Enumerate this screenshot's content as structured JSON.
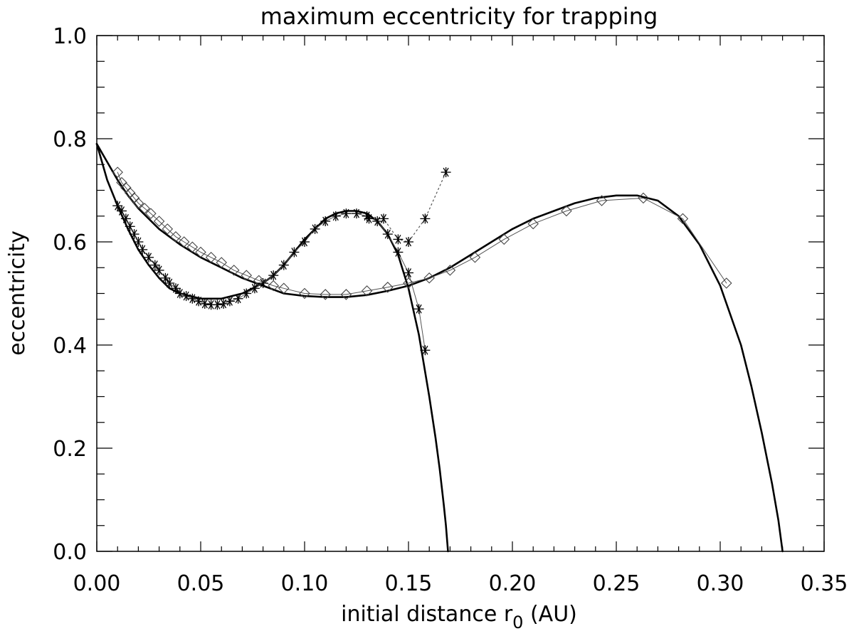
{
  "chart_data": {
    "type": "line",
    "title": "maximum eccentricity for trapping",
    "xlabel": {
      "prefix": "initial distance r",
      "subscript": "0",
      "suffix": " (AU)"
    },
    "ylabel": "eccentricity",
    "xlim": [
      0.0,
      0.35
    ],
    "ylim": [
      0.0,
      1.0
    ],
    "x_ticks": [
      0.0,
      0.05,
      0.1,
      0.15,
      0.2,
      0.25,
      0.3,
      0.35
    ],
    "x_tick_labels": [
      "0.00",
      "0.05",
      "0.10",
      "0.15",
      "0.20",
      "0.25",
      "0.30",
      "0.35"
    ],
    "y_ticks": [
      0.0,
      0.2,
      0.4,
      0.6,
      0.8,
      1.0
    ],
    "y_tick_labels": [
      "0.0",
      "0.2",
      "0.4",
      "0.6",
      "0.8",
      "1.0"
    ],
    "grid": false,
    "series": [
      {
        "name": "asterisk-model-curve",
        "style": "thick-line",
        "x": [
          0.0,
          0.005,
          0.01,
          0.015,
          0.02,
          0.025,
          0.03,
          0.035,
          0.04,
          0.045,
          0.05,
          0.055,
          0.06,
          0.065,
          0.07,
          0.075,
          0.08,
          0.085,
          0.09,
          0.095,
          0.1,
          0.105,
          0.11,
          0.115,
          0.12,
          0.125,
          0.13,
          0.135,
          0.14,
          0.145,
          0.15,
          0.155,
          0.16,
          0.163,
          0.165,
          0.167,
          0.168,
          0.169
        ],
        "y": [
          0.79,
          0.72,
          0.67,
          0.625,
          0.585,
          0.555,
          0.53,
          0.51,
          0.5,
          0.495,
          0.49,
          0.49,
          0.49,
          0.495,
          0.5,
          0.51,
          0.52,
          0.535,
          0.555,
          0.58,
          0.605,
          0.625,
          0.645,
          0.655,
          0.66,
          0.66,
          0.655,
          0.64,
          0.615,
          0.575,
          0.51,
          0.42,
          0.3,
          0.22,
          0.16,
          0.09,
          0.05,
          0.0
        ]
      },
      {
        "name": "asterisk-data",
        "style": "thin-line-asterisk",
        "x": [
          0.01,
          0.012,
          0.014,
          0.016,
          0.018,
          0.02,
          0.022,
          0.025,
          0.028,
          0.03,
          0.033,
          0.035,
          0.038,
          0.04,
          0.043,
          0.046,
          0.049,
          0.052,
          0.055,
          0.058,
          0.061,
          0.064,
          0.068,
          0.072,
          0.076,
          0.08,
          0.085,
          0.09,
          0.095,
          0.1,
          0.105,
          0.11,
          0.115,
          0.12,
          0.125,
          0.13,
          0.135,
          0.14,
          0.145,
          0.15,
          0.155,
          0.158
        ],
        "y": [
          0.67,
          0.66,
          0.645,
          0.63,
          0.615,
          0.6,
          0.585,
          0.57,
          0.555,
          0.545,
          0.53,
          0.52,
          0.51,
          0.5,
          0.495,
          0.49,
          0.485,
          0.48,
          0.478,
          0.478,
          0.48,
          0.485,
          0.49,
          0.5,
          0.51,
          0.52,
          0.535,
          0.555,
          0.58,
          0.6,
          0.625,
          0.64,
          0.65,
          0.655,
          0.655,
          0.65,
          0.64,
          0.615,
          0.58,
          0.54,
          0.47,
          0.39
        ]
      },
      {
        "name": "asterisk-data-dotted",
        "style": "dotted-asterisk",
        "x": [
          0.131,
          0.138,
          0.145,
          0.15,
          0.158,
          0.168
        ],
        "y": [
          0.645,
          0.645,
          0.605,
          0.6,
          0.645,
          0.735
        ]
      },
      {
        "name": "diamond-model-curve",
        "style": "thick-line",
        "x": [
          0.0,
          0.005,
          0.01,
          0.015,
          0.02,
          0.025,
          0.03,
          0.04,
          0.05,
          0.06,
          0.07,
          0.08,
          0.09,
          0.1,
          0.11,
          0.12,
          0.13,
          0.14,
          0.15,
          0.16,
          0.17,
          0.18,
          0.19,
          0.2,
          0.21,
          0.22,
          0.23,
          0.24,
          0.25,
          0.26,
          0.27,
          0.28,
          0.29,
          0.3,
          0.31,
          0.315,
          0.32,
          0.325,
          0.328,
          0.33
        ],
        "y": [
          0.79,
          0.755,
          0.72,
          0.69,
          0.665,
          0.645,
          0.625,
          0.595,
          0.57,
          0.55,
          0.53,
          0.515,
          0.5,
          0.495,
          0.493,
          0.493,
          0.497,
          0.505,
          0.515,
          0.53,
          0.55,
          0.575,
          0.6,
          0.625,
          0.645,
          0.66,
          0.675,
          0.685,
          0.69,
          0.69,
          0.68,
          0.65,
          0.595,
          0.515,
          0.4,
          0.32,
          0.23,
          0.13,
          0.06,
          0.0
        ]
      },
      {
        "name": "diamond-data",
        "style": "thin-line-diamond",
        "x": [
          0.01,
          0.012,
          0.014,
          0.016,
          0.018,
          0.02,
          0.023,
          0.026,
          0.03,
          0.034,
          0.038,
          0.042,
          0.046,
          0.05,
          0.055,
          0.06,
          0.066,
          0.072,
          0.078,
          0.085,
          0.09,
          0.1,
          0.11,
          0.12,
          0.13,
          0.14,
          0.15,
          0.16,
          0.17,
          0.182,
          0.196,
          0.21,
          0.226,
          0.243,
          0.263,
          0.282,
          0.303
        ],
        "y": [
          0.735,
          0.715,
          0.705,
          0.695,
          0.685,
          0.675,
          0.665,
          0.655,
          0.64,
          0.625,
          0.61,
          0.6,
          0.59,
          0.58,
          0.57,
          0.56,
          0.545,
          0.535,
          0.525,
          0.515,
          0.51,
          0.5,
          0.498,
          0.498,
          0.505,
          0.512,
          0.52,
          0.53,
          0.545,
          0.57,
          0.605,
          0.635,
          0.66,
          0.68,
          0.685,
          0.645,
          0.52
        ]
      }
    ]
  }
}
